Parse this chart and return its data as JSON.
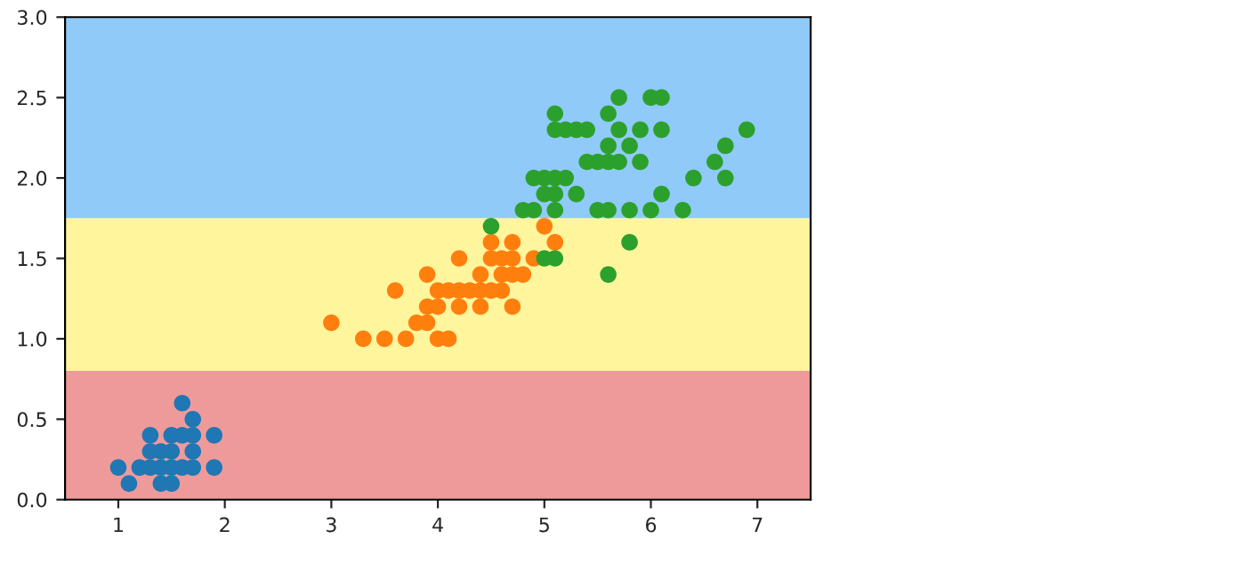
{
  "chart_data": {
    "type": "scatter",
    "xlim": [
      0.5,
      7.5
    ],
    "xticks": [
      1,
      2,
      3,
      4,
      5,
      6,
      7
    ],
    "ylim": [
      0,
      3.0
    ],
    "yticks": [
      {
        "value": 0,
        "label": "0.0"
      },
      0.5,
      {
        "value": 1,
        "label": "1.0"
      },
      1.5,
      {
        "value": 2,
        "label": "2.0"
      },
      2.5,
      {
        "value": 3,
        "label": "3.0"
      }
    ],
    "grid": false,
    "marker": "circle",
    "bands": [
      {
        "axis": "y",
        "from": 0,
        "to": 0.8,
        "color": "#ef9a9a"
      },
      {
        "axis": "y",
        "from": 0.8,
        "to": 1.75,
        "color": "#fff59d"
      },
      {
        "axis": "y",
        "from": 1.75,
        "to": 3.0,
        "color": "#90caf9"
      }
    ],
    "series": [
      {
        "color": "#1f77b4",
        "x": [
          1.0,
          1.1,
          1.2,
          1.3,
          1.3,
          1.3,
          1.4,
          1.4,
          1.4,
          1.5,
          1.5,
          1.5,
          1.5,
          1.6,
          1.6,
          1.6,
          1.7,
          1.7,
          1.7,
          1.7,
          1.9,
          1.9
        ],
        "values": [
          0.2,
          0.1,
          0.2,
          0.2,
          0.3,
          0.4,
          0.1,
          0.2,
          0.3,
          0.1,
          0.2,
          0.3,
          0.4,
          0.2,
          0.4,
          0.6,
          0.2,
          0.3,
          0.4,
          0.5,
          0.2,
          0.4
        ]
      },
      {
        "color": "#ff7f0e",
        "x": [
          3.0,
          3.3,
          3.5,
          3.6,
          3.7,
          3.8,
          3.9,
          3.9,
          3.9,
          4.0,
          4.0,
          4.0,
          4.1,
          4.1,
          4.2,
          4.2,
          4.2,
          4.3,
          4.4,
          4.4,
          4.4,
          4.5,
          4.5,
          4.5,
          4.6,
          4.6,
          4.6,
          4.7,
          4.7,
          4.7,
          4.7,
          4.8,
          4.9,
          5.0,
          5.1
        ],
        "values": [
          1.1,
          1.0,
          1.0,
          1.3,
          1.0,
          1.1,
          1.1,
          1.2,
          1.4,
          1.0,
          1.2,
          1.3,
          1.0,
          1.3,
          1.2,
          1.3,
          1.5,
          1.3,
          1.2,
          1.3,
          1.4,
          1.3,
          1.5,
          1.6,
          1.3,
          1.4,
          1.5,
          1.2,
          1.4,
          1.5,
          1.6,
          1.4,
          1.5,
          1.7,
          1.6
        ]
      },
      {
        "color": "#2ca02c",
        "x": [
          4.5,
          4.8,
          4.9,
          4.9,
          5.0,
          5.0,
          5.0,
          5.1,
          5.1,
          5.1,
          5.1,
          5.1,
          5.1,
          5.2,
          5.2,
          5.3,
          5.3,
          5.4,
          5.4,
          5.5,
          5.5,
          5.6,
          5.6,
          5.6,
          5.6,
          5.6,
          5.7,
          5.7,
          5.7,
          5.8,
          5.8,
          5.8,
          5.9,
          5.9,
          6.0,
          6.0,
          6.1,
          6.1,
          6.1,
          6.3,
          6.4,
          6.6,
          6.7,
          6.7,
          6.9
        ],
        "values": [
          1.7,
          1.8,
          1.8,
          2.0,
          1.5,
          1.9,
          2.0,
          1.5,
          1.8,
          1.9,
          2.0,
          2.3,
          2.4,
          2.0,
          2.3,
          1.9,
          2.3,
          2.1,
          2.3,
          1.8,
          2.1,
          1.4,
          1.8,
          2.1,
          2.2,
          2.4,
          2.1,
          2.3,
          2.5,
          1.6,
          1.8,
          2.2,
          2.1,
          2.3,
          1.8,
          2.5,
          1.9,
          2.3,
          2.5,
          1.8,
          2.0,
          2.1,
          2.0,
          2.2,
          2.3
        ]
      }
    ]
  }
}
